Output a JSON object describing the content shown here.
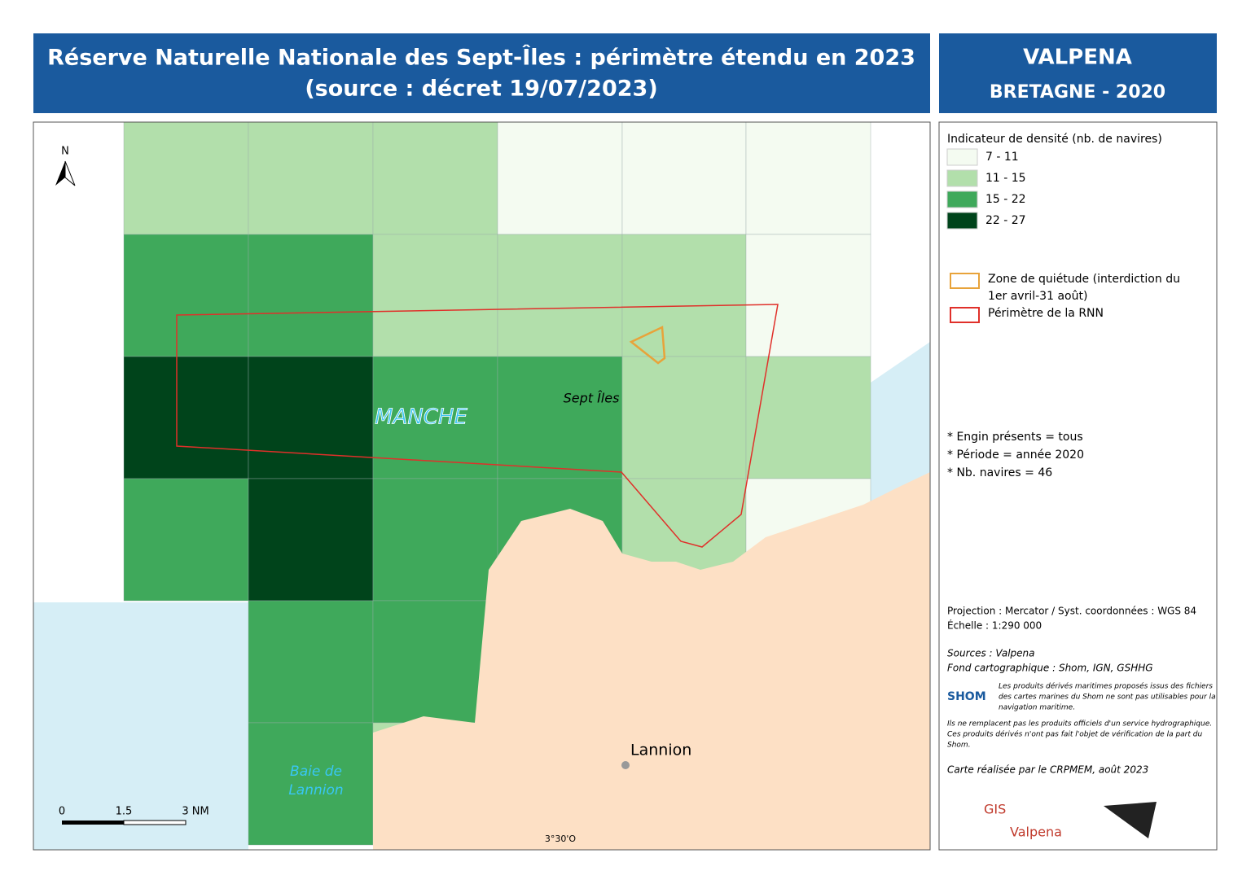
{
  "header": {
    "title_lines": [
      "Réserve Naturelle Nationale des Sept-Îles : périmètre étendu en 2023",
      "(source : décret 19/07/2023)"
    ],
    "brand": "VALPENA",
    "subtitle": "BRETAGNE - 2020"
  },
  "map": {
    "north": "N",
    "labels": {
      "sea": "MANCHE",
      "islands": "Sept Îles",
      "bay_line1": "Baie de",
      "bay_line2": "Lannion",
      "town": "Lannion",
      "longitude": "3°30'O"
    },
    "scale": {
      "start": "0",
      "mid": "1.5",
      "end": "3 NM"
    },
    "grid_classes": [
      [
        1,
        1,
        1,
        0,
        0,
        0
      ],
      [
        2,
        2,
        1,
        1,
        1,
        0
      ],
      [
        3,
        3,
        2,
        2,
        1,
        1
      ],
      [
        2,
        3,
        2,
        2,
        1,
        0
      ],
      [
        null,
        2,
        2,
        null,
        null,
        null
      ],
      [
        null,
        2,
        1,
        null,
        null,
        null
      ]
    ]
  },
  "legend": {
    "title": "Indicateur de densité (nb. de navires)",
    "classes": [
      {
        "label": "7 - 11",
        "color": "#f4fbf1"
      },
      {
        "label": "11 - 15",
        "color": "#b2dfab"
      },
      {
        "label": "15 - 22",
        "color": "#3fa95b"
      },
      {
        "label": "22 - 27",
        "color": "#00441b"
      }
    ],
    "zones": [
      {
        "label_lines": [
          "Zone de quiétude (interdiction du",
          "1er avril-31 août)"
        ],
        "color": "#e8a33a"
      },
      {
        "label_lines": [
          "Périmètre de la RNN"
        ],
        "color": "#e0302a"
      }
    ],
    "notes": [
      "* Engin présents = tous",
      "* Période = année 2020",
      "* Nb. navires =  46"
    ],
    "projection": "Projection : Mercator / Syst. coordonnées : WGS 84",
    "scale_text": "Échelle : 1:290 000",
    "sources": "Sources : Valpena",
    "basemap": "Fond cartographique : Shom, IGN, GSHHG",
    "shom_logo": "SHOM",
    "shom_notice": [
      "Les produits dérivés maritimes proposés issus des fichiers",
      "des cartes marines du Shom ne sont pas utilisables pour la",
      "navigation maritime."
    ],
    "disclaimer": [
      "Ils ne remplacent pas les produits officiels d'un service hydrographique.",
      "Ces produits dérivés n'ont pas fait l'objet de vérification de la part du",
      "Shom."
    ],
    "credit": "Carte réalisée par le CRPMEM, août 2023",
    "logo_gis": "GIS",
    "logo_valpena": "Valpena"
  }
}
